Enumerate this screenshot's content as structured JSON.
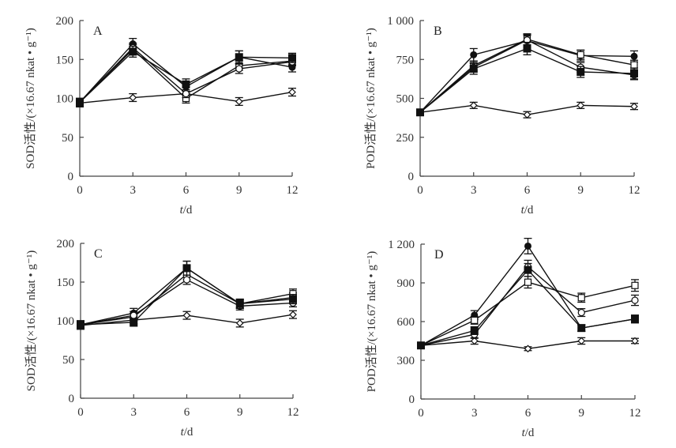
{
  "chart_data": [
    {
      "type": "line",
      "panel": "A",
      "title": "",
      "xlabel": "t/d",
      "ylabel": "SOD活性/(×16.67 nkat • g⁻¹)",
      "x": [
        0,
        3,
        6,
        9,
        12
      ],
      "xticks": [
        "0",
        "3",
        "6",
        "9",
        "12"
      ],
      "yticks": [
        "0",
        "50",
        "100",
        "150",
        "200"
      ],
      "ytick_values": [
        0,
        50,
        100,
        150,
        200
      ],
      "xlim": [
        0,
        12
      ],
      "ylim": [
        0,
        200
      ],
      "grid": false,
      "series": [
        {
          "name": "open-diamond",
          "marker": "diamond-open",
          "values": [
            94,
            101,
            106,
            96,
            108
          ],
          "err": [
            5,
            5,
            5,
            5,
            5
          ]
        },
        {
          "name": "filled-circle",
          "marker": "circle-filled",
          "values": [
            95,
            170,
            115,
            153,
            140
          ],
          "err": [
            5,
            7,
            6,
            8,
            6
          ]
        },
        {
          "name": "open-square",
          "marker": "square-open",
          "values": [
            95,
            163,
            100,
            142,
            148
          ],
          "err": [
            5,
            6,
            6,
            6,
            5
          ]
        },
        {
          "name": "open-circle",
          "marker": "circle-open",
          "values": [
            95,
            165,
            106,
            138,
            147
          ],
          "err": [
            5,
            6,
            5,
            6,
            5
          ]
        },
        {
          "name": "filled-square",
          "marker": "square-filled",
          "values": [
            95,
            160,
            118,
            153,
            152
          ],
          "err": [
            5,
            7,
            7,
            8,
            6
          ]
        }
      ]
    },
    {
      "type": "line",
      "panel": "B",
      "title": "",
      "xlabel": "t/d",
      "ylabel": "POD活性/(×16.67 nkat • g⁻¹)",
      "x": [
        0,
        3,
        6,
        9,
        12
      ],
      "xticks": [
        "0",
        "3",
        "6",
        "9",
        "12"
      ],
      "yticks": [
        "0",
        "250",
        "500",
        "750",
        "1 000"
      ],
      "ytick_values": [
        0,
        250,
        500,
        750,
        1000
      ],
      "xlim": [
        0,
        12
      ],
      "ylim": [
        0,
        1000
      ],
      "grid": false,
      "series": [
        {
          "name": "open-diamond",
          "marker": "diamond-open",
          "values": [
            410,
            455,
            395,
            455,
            448
          ],
          "err": [
            20,
            20,
            20,
            20,
            20
          ]
        },
        {
          "name": "filled-circle",
          "marker": "circle-filled",
          "values": [
            410,
            780,
            870,
            775,
            770
          ],
          "err": [
            20,
            40,
            35,
            35,
            35
          ]
        },
        {
          "name": "open-square",
          "marker": "square-open",
          "values": [
            410,
            710,
            880,
            780,
            715
          ],
          "err": [
            20,
            30,
            35,
            30,
            30
          ]
        },
        {
          "name": "open-circle",
          "marker": "circle-open",
          "values": [
            410,
            700,
            875,
            700,
            650
          ],
          "err": [
            20,
            30,
            35,
            30,
            30
          ]
        },
        {
          "name": "filled-square",
          "marker": "square-filled",
          "values": [
            410,
            690,
            820,
            670,
            660
          ],
          "err": [
            20,
            35,
            40,
            35,
            35
          ]
        }
      ]
    },
    {
      "type": "line",
      "panel": "C",
      "title": "",
      "xlabel": "t/d",
      "ylabel": "SOD活性/(×16.67 nkat • g⁻¹)",
      "x": [
        0,
        3,
        6,
        9,
        12
      ],
      "xticks": [
        "0",
        "3",
        "6",
        "9",
        "12"
      ],
      "yticks": [
        "0",
        "50",
        "100",
        "150",
        "200"
      ],
      "ytick_values": [
        0,
        50,
        100,
        150,
        200
      ],
      "xlim": [
        0,
        12
      ],
      "ylim": [
        0,
        200
      ],
      "grid": false,
      "series": [
        {
          "name": "open-diamond",
          "marker": "diamond-open",
          "values": [
            94,
            101,
            107,
            97,
            108
          ],
          "err": [
            5,
            5,
            5,
            5,
            5
          ]
        },
        {
          "name": "filled-circle",
          "marker": "circle-filled",
          "values": [
            95,
            110,
            168,
            122,
            130
          ],
          "err": [
            5,
            6,
            9,
            6,
            6
          ]
        },
        {
          "name": "open-square",
          "marker": "square-open",
          "values": [
            95,
            105,
            160,
            122,
            135
          ],
          "err": [
            5,
            5,
            7,
            5,
            6
          ]
        },
        {
          "name": "open-circle",
          "marker": "circle-open",
          "values": [
            95,
            107,
            153,
            119,
            123
          ],
          "err": [
            5,
            5,
            6,
            5,
            5
          ]
        },
        {
          "name": "filled-square",
          "marker": "square-filled",
          "values": [
            95,
            98,
            168,
            122,
            128
          ],
          "err": [
            5,
            5,
            9,
            6,
            6
          ]
        }
      ]
    },
    {
      "type": "line",
      "panel": "D",
      "title": "",
      "xlabel": "t/d",
      "ylabel": "POD活性/(×16.67 nkat • g⁻¹)",
      "x": [
        0,
        3,
        6,
        9,
        12
      ],
      "xticks": [
        "0",
        "3",
        "6",
        "9",
        "12"
      ],
      "yticks": [
        "0",
        "300",
        "600",
        "900",
        "1 200"
      ],
      "ytick_values": [
        0,
        300,
        600,
        900,
        1200
      ],
      "xlim": [
        0,
        12
      ],
      "ylim": [
        0,
        1200
      ],
      "grid": false,
      "series": [
        {
          "name": "open-diamond",
          "marker": "diamond-open",
          "values": [
            415,
            450,
            390,
            450,
            450
          ],
          "err": [
            20,
            25,
            15,
            25,
            20
          ]
        },
        {
          "name": "filled-circle",
          "marker": "circle-filled",
          "values": [
            415,
            650,
            1185,
            550,
            620
          ],
          "err": [
            20,
            35,
            60,
            25,
            30
          ]
        },
        {
          "name": "open-square",
          "marker": "square-open",
          "values": [
            415,
            610,
            905,
            785,
            880
          ],
          "err": [
            20,
            30,
            45,
            35,
            45
          ]
        },
        {
          "name": "open-circle",
          "marker": "circle-open",
          "values": [
            415,
            500,
            1025,
            670,
            765
          ],
          "err": [
            20,
            30,
            50,
            30,
            40
          ]
        },
        {
          "name": "filled-square",
          "marker": "square-filled",
          "values": [
            415,
            530,
            1000,
            550,
            620
          ],
          "err": [
            20,
            30,
            50,
            25,
            30
          ]
        }
      ]
    }
  ]
}
